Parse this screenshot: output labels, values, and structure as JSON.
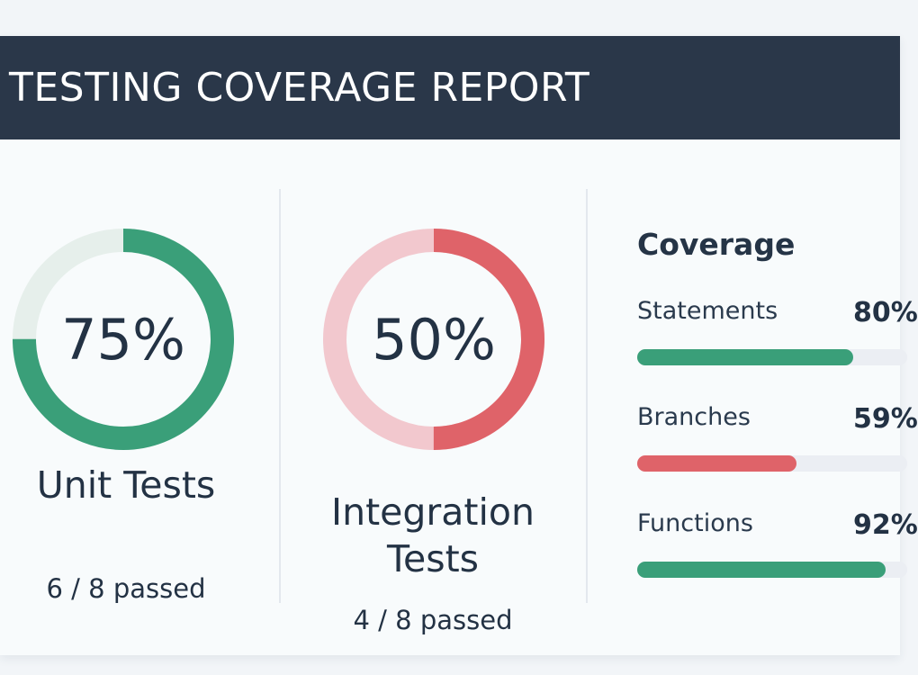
{
  "header": {
    "title": "TESTING COVERAGE REPORT"
  },
  "colors": {
    "header_bg": "#2a3749",
    "green": "#3a9f79",
    "red": "#df6369",
    "red_track": "#f2c8ce",
    "green_track": "#e6efeb",
    "bar_track": "#ebeef3"
  },
  "unit_tests": {
    "percent_label": "75%",
    "percent": 75,
    "title": "Unit Tests",
    "summary": "6 / 8 passed",
    "color": "#3a9f79",
    "track_color": "#e6efeb"
  },
  "integration_tests": {
    "percent_label": "50%",
    "percent": 50,
    "title_line1": "Integration",
    "title_line2": "Tests",
    "summary": "4 / 8 passed",
    "color": "#df6369",
    "track_color": "#f2c8ce"
  },
  "coverage": {
    "heading": "Coverage",
    "metrics": [
      {
        "label": "Statements",
        "value": "80%",
        "percent": 80,
        "color": "#3a9f79"
      },
      {
        "label": "Branches",
        "value": "59%",
        "percent": 59,
        "color": "#df6369"
      },
      {
        "label": "Functions",
        "value": "92%",
        "percent": 92,
        "color": "#3a9f79"
      }
    ]
  }
}
